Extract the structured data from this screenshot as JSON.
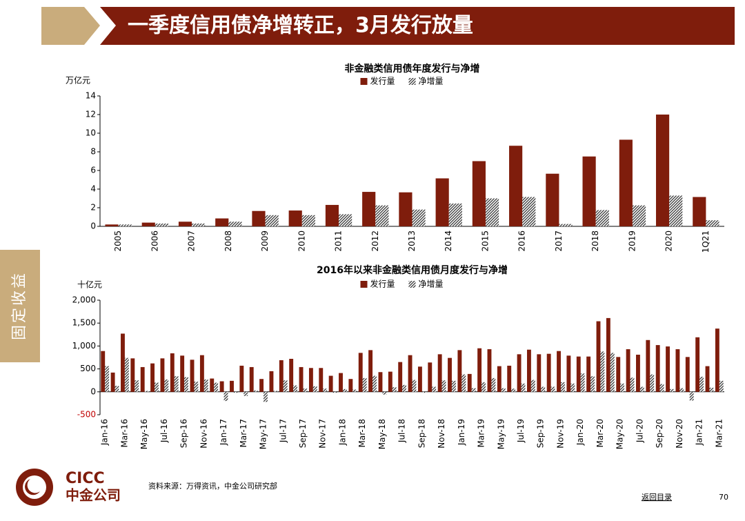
{
  "header": {
    "title": "一季度信用债净增转正，3月发行放量"
  },
  "side_tab": {
    "label": "固定收益"
  },
  "chart_data": [
    {
      "type": "bar",
      "title": "非金融类信用债年度发行与净增",
      "y_label": "万亿元",
      "categories": [
        "2005",
        "2006",
        "2007",
        "2008",
        "2009",
        "2010",
        "2011",
        "2012",
        "2013",
        "2014",
        "2015",
        "2016",
        "2017",
        "2018",
        "2019",
        "2020",
        "1Q21"
      ],
      "series": [
        {
          "name": "发行量",
          "color": "#7f1d0c",
          "values": [
            0.2,
            0.4,
            0.5,
            0.85,
            1.65,
            1.7,
            2.3,
            3.7,
            3.65,
            5.15,
            7.0,
            8.65,
            5.65,
            7.5,
            9.3,
            12.0,
            3.15
          ]
        },
        {
          "name": "净增量",
          "color": "#333333",
          "values": [
            0.2,
            0.3,
            0.3,
            0.5,
            1.2,
            1.2,
            1.3,
            2.25,
            1.8,
            2.45,
            3.0,
            3.15,
            0.25,
            1.75,
            2.25,
            3.3,
            0.65
          ]
        }
      ],
      "ylim": [
        0,
        14
      ],
      "yticks": [
        0,
        2,
        4,
        6,
        8,
        10,
        12,
        14
      ]
    },
    {
      "type": "bar",
      "title": "2016年以来非金融类信用债月度发行与净增",
      "y_label": "十亿元",
      "categories": [
        "Jan-16",
        null,
        "Mar-16",
        null,
        "May-16",
        null,
        "Jul-16",
        null,
        "Sep-16",
        null,
        "Nov-16",
        null,
        "Jan-17",
        null,
        "Mar-17",
        null,
        "May-17",
        null,
        "Jul-17",
        null,
        "Sep-17",
        null,
        "Nov-17",
        null,
        "Jan-18",
        null,
        "Mar-18",
        null,
        "May-18",
        null,
        "Jul-18",
        null,
        "Sep-18",
        null,
        "Nov-18",
        null,
        "Jan-19",
        null,
        "Mar-19",
        null,
        "May-19",
        null,
        "Jul-19",
        null,
        "Sep-19",
        null,
        "Nov-19",
        null,
        "Jan-20",
        null,
        "Mar-20",
        null,
        "May-20",
        null,
        "Jul-20",
        null,
        "Sep-20",
        null,
        "Nov-20",
        null,
        "Jan-21",
        null,
        "Mar-21"
      ],
      "series": [
        {
          "name": "发行量",
          "color": "#7f1d0c",
          "values": [
            890,
            420,
            1270,
            730,
            540,
            620,
            730,
            840,
            790,
            700,
            800,
            290,
            230,
            240,
            570,
            540,
            280,
            450,
            690,
            720,
            540,
            520,
            520,
            350,
            410,
            280,
            850,
            910,
            430,
            440,
            650,
            800,
            550,
            640,
            820,
            740,
            910,
            390,
            950,
            930,
            560,
            570,
            820,
            920,
            820,
            830,
            890,
            790,
            770,
            770,
            1540,
            1610,
            760,
            930,
            810,
            1130,
            1020,
            990,
            930,
            760,
            1190,
            560,
            1380
          ]
        },
        {
          "name": "净增量",
          "color": "#333333",
          "values": [
            560,
            130,
            740,
            250,
            20,
            200,
            270,
            340,
            320,
            220,
            270,
            200,
            -200,
            -20,
            -90,
            30,
            -220,
            20,
            250,
            140,
            70,
            120,
            70,
            -20,
            60,
            50,
            300,
            350,
            -60,
            100,
            150,
            260,
            -20,
            110,
            250,
            240,
            380,
            80,
            210,
            300,
            80,
            70,
            180,
            260,
            110,
            110,
            210,
            180,
            400,
            340,
            880,
            850,
            180,
            310,
            110,
            380,
            170,
            60,
            80,
            -190,
            330,
            90,
            240
          ]
        }
      ],
      "ylim": [
        -500,
        2000
      ],
      "yticks": [
        -500,
        0,
        500,
        {
          "value": 1000,
          "label": "1,000"
        },
        {
          "value": 1500,
          "label": "1,500"
        },
        {
          "value": 2000,
          "label": "2,000"
        }
      ]
    }
  ],
  "footer": {
    "source": "资料来源：万得资讯，中金公司研究部",
    "logo_en": "CICC",
    "logo_cn": "中金公司",
    "back_link": "返回目录",
    "page_number": "70"
  }
}
